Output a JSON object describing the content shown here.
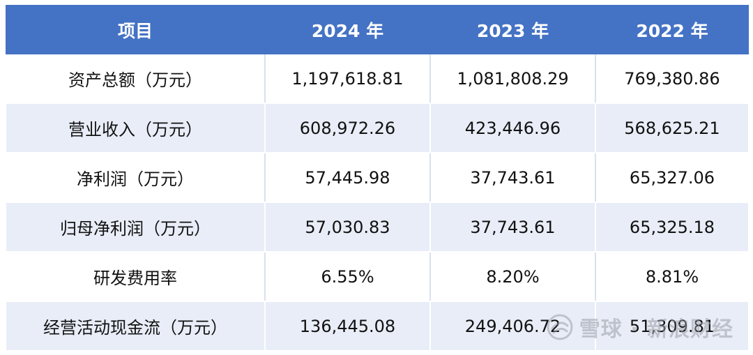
{
  "table": {
    "headers": [
      "项目",
      "2024 年",
      "2023 年",
      "2022 年"
    ],
    "rows": [
      [
        "资产总额（万元）",
        "1,197,618.81",
        "1,081,808.29",
        "769,380.86"
      ],
      [
        "营业收入（万元）",
        "608,972.26",
        "423,446.96",
        "568,625.21"
      ],
      [
        "净利润（万元）",
        "57,445.98",
        "37,743.61",
        "65,327.06"
      ],
      [
        "归母净利润（万元）",
        "57,030.83",
        "37,743.61",
        "65,325.18"
      ],
      [
        "研发费用率",
        "6.55%",
        "8.20%",
        "8.81%"
      ],
      [
        "经营活动现金流（万元）",
        "136,445.08",
        "249,406.72",
        "51,309.81"
      ]
    ]
  },
  "watermark": {
    "text": "雪球 · 新浪财经",
    "icon": "snowball-logo-icon"
  },
  "colors": {
    "header_bg": "#4472c4",
    "header_text": "#ffffff",
    "stripe_bg": "#e8edf7"
  }
}
